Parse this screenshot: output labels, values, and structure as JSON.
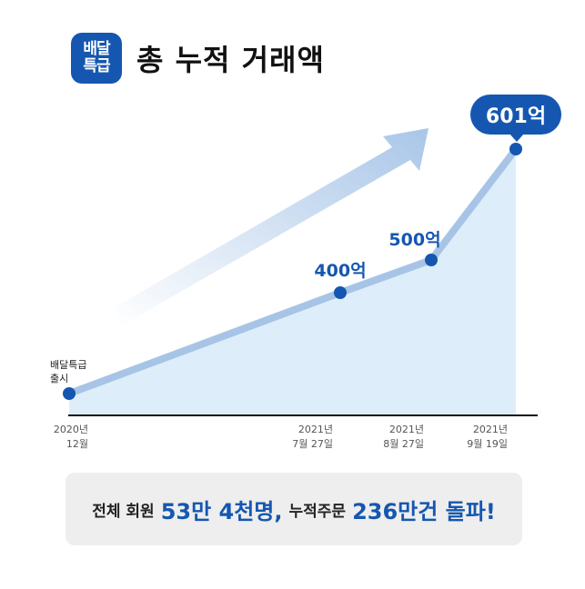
{
  "header": {
    "logo_line1": "배달",
    "logo_line2": "특급",
    "title": "총 누적 거래액"
  },
  "chart_data": {
    "type": "area",
    "title": "총 누적 거래액",
    "points": [
      {
        "x_label": [
          "2020년",
          "12월"
        ],
        "value": null,
        "annotation": [
          "배달특급",
          "출시"
        ]
      },
      {
        "x_label": [
          "2021년",
          "7월 27일"
        ],
        "value": 400,
        "annotation": [
          "400억"
        ]
      },
      {
        "x_label": [
          "2021년",
          "8월 27일"
        ],
        "value": 500,
        "annotation": [
          "500억"
        ]
      },
      {
        "x_label": [
          "2021년",
          "9월 19일"
        ],
        "value": 601,
        "annotation": [
          "601억"
        ]
      }
    ],
    "unit": "억",
    "colors": {
      "line": "#a7c4e6",
      "area": "#ddeefa",
      "marker": "#1557b0",
      "axis": "#111111"
    },
    "grid": false,
    "legend": "none"
  },
  "summary": {
    "part1": "전체 회원",
    "part2": "53만 4천명,",
    "part3": "누적주문",
    "part4": "236만건 돌파!"
  }
}
